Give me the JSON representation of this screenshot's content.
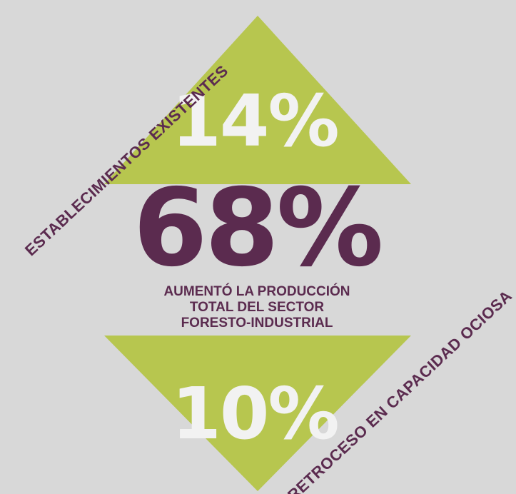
{
  "colors": {
    "background": "#d8d8d8",
    "triangle": "#b7c64f",
    "primary_text": "#5b2b4f",
    "percent_light": "#f2f2f2"
  },
  "top_stat": {
    "value": "14%"
  },
  "main_stat": {
    "value": "68%",
    "description_lines": [
      "AUMENTÓ LA PRODUCCIÓN",
      "TOTAL DEL SECTOR",
      "FORESTO-INDUSTRIAL"
    ]
  },
  "bottom_stat": {
    "value": "10%"
  },
  "side_labels": {
    "left": "ESTABLECIMIENTOS EXISTENTES",
    "right": "RETROCESO EN CAPACIDAD OCIOSA"
  }
}
